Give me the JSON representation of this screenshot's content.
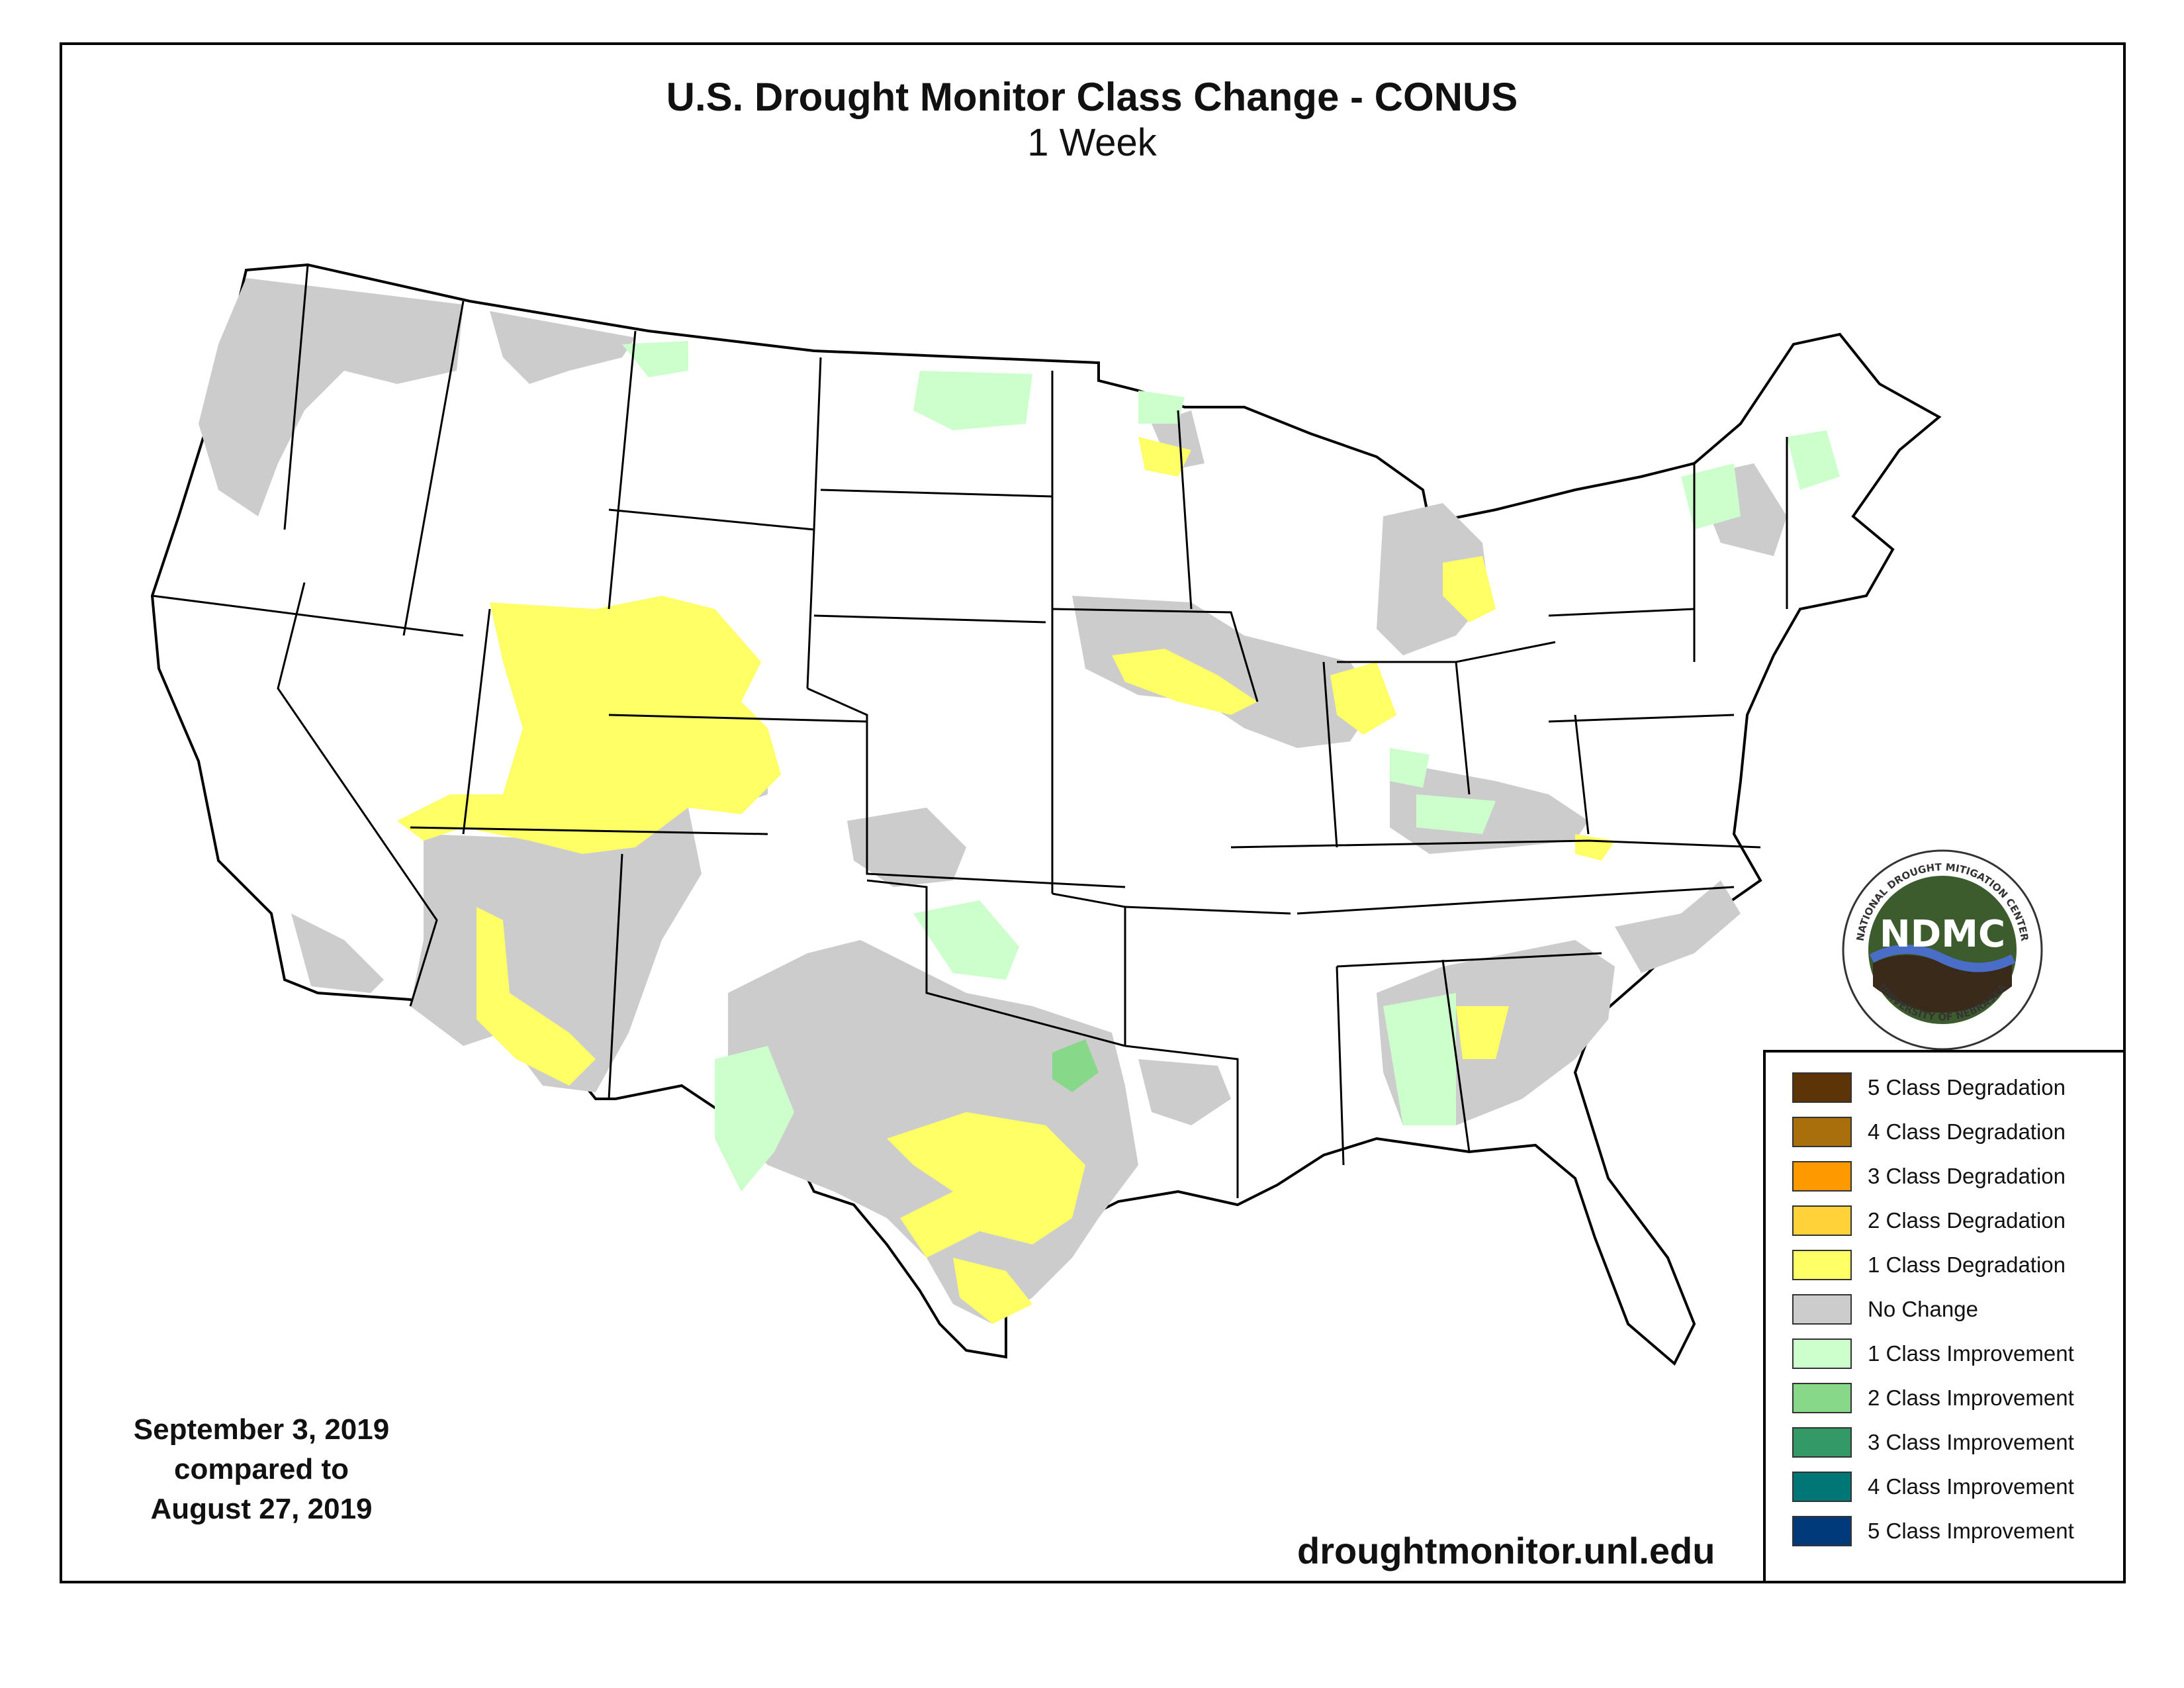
{
  "title": "U.S. Drought Monitor Class Change - CONUS",
  "subtitle": "1 Week",
  "dates": {
    "line1": "September 3, 2019",
    "line2": "compared to",
    "line3": "August 27, 2019"
  },
  "website": "droughtmonitor.unl.edu",
  "logo": {
    "acronym": "NDMC",
    "ring_text_top": "NATIONAL DROUGHT MITIGATION CENTER",
    "ring_text_bottom": "UNIVERSITY OF NEBRASKA"
  },
  "legend": [
    {
      "label": "5 Class Degradation",
      "color": "#5c3408"
    },
    {
      "label": "4 Class Degradation",
      "color": "#a86f0c"
    },
    {
      "label": "3 Class Degradation",
      "color": "#ff9900"
    },
    {
      "label": "2 Class Degradation",
      "color": "#ffd23a"
    },
    {
      "label": "1 Class Degradation",
      "color": "#ffff66"
    },
    {
      "label": "No Change",
      "color": "#cccccc"
    },
    {
      "label": "1 Class Improvement",
      "color": "#ccffcc"
    },
    {
      "label": "2 Class Improvement",
      "color": "#88d88a"
    },
    {
      "label": "3 Class Improvement",
      "color": "#339966"
    },
    {
      "label": "4 Class Improvement",
      "color": "#007777"
    },
    {
      "label": "5 Class Improvement",
      "color": "#003a7a"
    }
  ],
  "colors": {
    "no_change": "#cccccc",
    "degradation_1": "#ffff66",
    "degradation_2": "#ffd23a",
    "improvement_1": "#ccffcc",
    "improvement_2": "#88d88a",
    "improvement_3": "#339966",
    "state_border": "#000000"
  }
}
